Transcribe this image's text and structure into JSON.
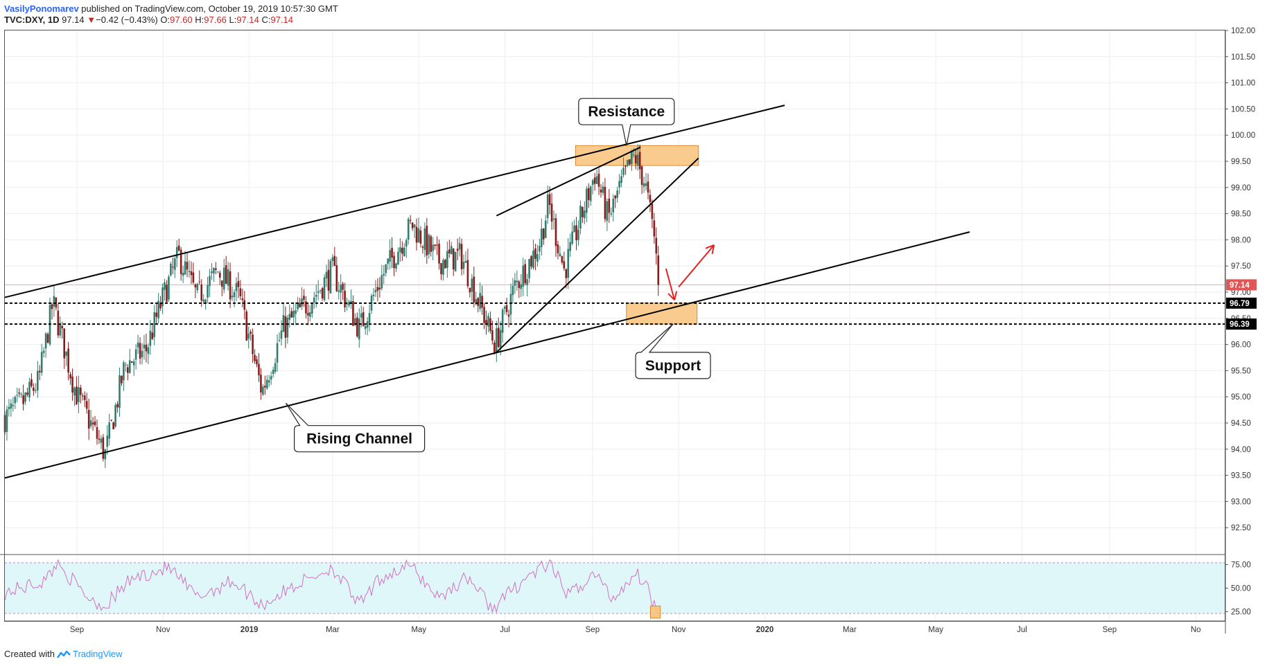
{
  "header": {
    "author": "VasilyPonomarev",
    "published_text": "published on TradingView.com, October 19, 2019 10:57:30 GMT",
    "symbol": "TVC:DXY, 1D",
    "last": "97.14",
    "change_arrow": "▼",
    "change": "−0.42 (−0.43%)",
    "o_label": "O:",
    "o_value": "97.60",
    "h_label": "H:",
    "h_value": "97.66",
    "l_label": "L:",
    "l_value": "97.14",
    "c_label": "C:",
    "c_value": "97.14"
  },
  "footer": {
    "created_with": "Created with",
    "brand": "TradingView",
    "logo_icon": "tradingview-logo-icon"
  },
  "colors": {
    "up_candle": "#2e7d6e",
    "down_candle": "#8b1a1a",
    "zone_fill": "#f8c27a",
    "zone_border": "#d98a2b",
    "rsi_band": "#e0f7fa",
    "rsi_line": "#d070c0",
    "last_price_tag": "#e05656",
    "marker_tag": "#000000",
    "arrow": "#e52222",
    "grid": "#eeeeee"
  },
  "chart_data": {
    "type": "candlestick",
    "symbol": "TVC:DXY",
    "interval": "1D",
    "x_axis": {
      "tick_labels": [
        "Sep",
        "Nov",
        "2019",
        "Mar",
        "May",
        "Jul",
        "Sep",
        "Nov",
        "2020",
        "Mar",
        "May",
        "Jul",
        "Sep",
        "No"
      ],
      "tick_dates": [
        "2018-09-01",
        "2018-11-01",
        "2019-01-01",
        "2019-03-01",
        "2019-05-01",
        "2019-07-01",
        "2019-09-01",
        "2019-11-01",
        "2020-01-01",
        "2020-03-01",
        "2020-05-01",
        "2020-07-01",
        "2020-09-01",
        "2020-11-01"
      ],
      "range": [
        "2018-07-12",
        "2020-11-22"
      ]
    },
    "y_axis": {
      "range": [
        92.0,
        102.0
      ],
      "tick_labels": [
        "102.00",
        "101.50",
        "101.00",
        "100.50",
        "100.00",
        "99.50",
        "99.00",
        "98.50",
        "98.00",
        "97.50",
        "97.00",
        "96.50",
        "96.00",
        "95.50",
        "95.00",
        "94.50",
        "94.00",
        "93.50",
        "93.00",
        "92.50"
      ],
      "grid": true
    },
    "price_path": [
      {
        "date": "2018-07-12",
        "close": 94.6
      },
      {
        "date": "2018-07-25",
        "close": 94.9
      },
      {
        "date": "2018-08-05",
        "close": 95.3
      },
      {
        "date": "2018-08-15",
        "close": 96.8
      },
      {
        "date": "2018-08-31",
        "close": 95.1
      },
      {
        "date": "2018-09-21",
        "close": 93.9
      },
      {
        "date": "2018-10-05",
        "close": 95.6
      },
      {
        "date": "2018-10-20",
        "close": 95.9
      },
      {
        "date": "2018-11-01",
        "close": 96.9
      },
      {
        "date": "2018-11-12",
        "close": 97.7
      },
      {
        "date": "2018-11-25",
        "close": 96.9
      },
      {
        "date": "2018-12-10",
        "close": 97.4
      },
      {
        "date": "2018-12-25",
        "close": 96.9
      },
      {
        "date": "2019-01-10",
        "close": 95.1
      },
      {
        "date": "2019-01-25",
        "close": 96.3
      },
      {
        "date": "2019-02-15",
        "close": 96.9
      },
      {
        "date": "2019-03-01",
        "close": 97.4
      },
      {
        "date": "2019-03-20",
        "close": 96.3
      },
      {
        "date": "2019-04-05",
        "close": 97.3
      },
      {
        "date": "2019-04-26",
        "close": 98.3
      },
      {
        "date": "2019-05-15",
        "close": 97.6
      },
      {
        "date": "2019-05-31",
        "close": 97.7
      },
      {
        "date": "2019-06-24",
        "close": 96.0
      },
      {
        "date": "2019-07-08",
        "close": 97.1
      },
      {
        "date": "2019-07-25",
        "close": 97.9
      },
      {
        "date": "2019-08-01",
        "close": 98.7
      },
      {
        "date": "2019-08-12",
        "close": 97.4
      },
      {
        "date": "2019-09-03",
        "close": 99.3
      },
      {
        "date": "2019-09-12",
        "close": 98.4
      },
      {
        "date": "2019-09-25",
        "close": 99.3
      },
      {
        "date": "2019-10-01",
        "close": 99.6
      },
      {
        "date": "2019-10-08",
        "close": 99.1
      },
      {
        "date": "2019-10-15",
        "close": 98.0
      },
      {
        "date": "2019-10-18",
        "close": 97.14
      }
    ],
    "last_price": 97.14,
    "price_markers": [
      {
        "label": "97.14",
        "value": 97.14,
        "style": "last"
      },
      {
        "label": "96.79",
        "value": 96.79,
        "style": "dashed"
      },
      {
        "label": "96.39",
        "value": 96.39,
        "style": "dashed"
      }
    ],
    "trendlines": [
      {
        "name": "channel-upper",
        "from": {
          "date": "2018-07-12",
          "price": 96.9
        },
        "to": {
          "date": "2020-01-15",
          "price": 100.57
        }
      },
      {
        "name": "channel-lower",
        "from": {
          "date": "2018-07-12",
          "price": 93.45
        },
        "to": {
          "date": "2020-05-25",
          "price": 98.15
        }
      },
      {
        "name": "wedge-upper",
        "from": {
          "date": "2019-06-25",
          "price": 98.46
        },
        "to": {
          "date": "2019-10-05",
          "price": 99.77
        }
      },
      {
        "name": "wedge-lower",
        "from": {
          "date": "2019-06-25",
          "price": 95.85
        },
        "to": {
          "date": "2019-11-15",
          "price": 99.56
        }
      }
    ],
    "zones": [
      {
        "name": "resistance-zone",
        "from": {
          "date": "2019-08-20",
          "price": 99.8
        },
        "to": {
          "date": "2019-11-15",
          "price": 99.42
        }
      },
      {
        "name": "support-zone",
        "from": {
          "date": "2019-09-25",
          "price": 96.79
        },
        "to": {
          "date": "2019-11-14",
          "price": 96.39
        }
      }
    ],
    "annotations": [
      {
        "text": "Resistance",
        "date": "2019-09-25",
        "price": 100.45
      },
      {
        "text": "Support",
        "date": "2019-10-28",
        "price": 95.6
      },
      {
        "text": "Rising Channel",
        "date": "2019-03-20",
        "price": 94.2
      }
    ],
    "projection_arrows": [
      {
        "name": "down-arrow",
        "from": {
          "date": "2019-10-23",
          "price": 97.45
        },
        "to": {
          "date": "2019-10-29",
          "price": 96.85
        }
      },
      {
        "name": "up-arrow",
        "from": {
          "date": "2019-11-01",
          "price": 97.1
        },
        "to": {
          "date": "2019-11-26",
          "price": 97.9
        }
      }
    ],
    "rsi": {
      "y_range": [
        15,
        85
      ],
      "tick_labels": [
        "75.00",
        "50.00",
        "25.00"
      ],
      "upper_band": 77,
      "lower_band": 23,
      "path": [
        {
          "date": "2018-07-12",
          "value": 45
        },
        {
          "date": "2018-08-10",
          "value": 58
        },
        {
          "date": "2018-08-18",
          "value": 78
        },
        {
          "date": "2018-09-05",
          "value": 45
        },
        {
          "date": "2018-09-20",
          "value": 30
        },
        {
          "date": "2018-10-10",
          "value": 60
        },
        {
          "date": "2018-11-05",
          "value": 72
        },
        {
          "date": "2018-11-25",
          "value": 40
        },
        {
          "date": "2018-12-20",
          "value": 58
        },
        {
          "date": "2019-01-10",
          "value": 32
        },
        {
          "date": "2019-02-05",
          "value": 55
        },
        {
          "date": "2019-03-01",
          "value": 72
        },
        {
          "date": "2019-03-20",
          "value": 32
        },
        {
          "date": "2019-04-05",
          "value": 62
        },
        {
          "date": "2019-04-25",
          "value": 74
        },
        {
          "date": "2019-05-15",
          "value": 40
        },
        {
          "date": "2019-06-05",
          "value": 62
        },
        {
          "date": "2019-06-22",
          "value": 28
        },
        {
          "date": "2019-07-15",
          "value": 60
        },
        {
          "date": "2019-08-01",
          "value": 76
        },
        {
          "date": "2019-08-15",
          "value": 42
        },
        {
          "date": "2019-09-03",
          "value": 66
        },
        {
          "date": "2019-09-15",
          "value": 38
        },
        {
          "date": "2019-10-01",
          "value": 66
        },
        {
          "date": "2019-10-08",
          "value": 58
        },
        {
          "date": "2019-10-14",
          "value": 34
        },
        {
          "date": "2019-10-18",
          "value": 24
        }
      ],
      "highlight_zone": {
        "from": {
          "date": "2019-10-12",
          "value": 31
        },
        "to": {
          "date": "2019-10-19",
          "value": 18
        }
      }
    }
  }
}
